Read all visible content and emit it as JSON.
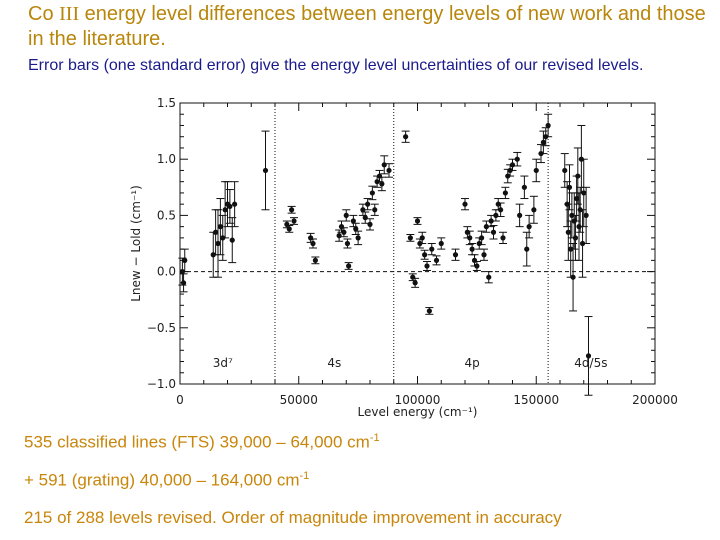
{
  "header": {
    "title_prefix": "Co ",
    "title_roman": "III",
    "title_rest": " energy level differences between energy levels of new work and those in the literature.",
    "subtitle": "Error bars (one standard error) give the energy level uncertainties of our revised levels."
  },
  "notes": {
    "line1_text": "535 classified lines (FTS) 39,000 – 64,000 cm",
    "line1_sup": "-1",
    "line2_text": "+ 591 (grating) 40,000 – 164,000 cm",
    "line2_sup": "-1",
    "line3": "215 of 288 levels revised. Order of magnitude improvement in accuracy"
  },
  "colors": {
    "title": "#b8860b",
    "subtitle": "#1a1a8c",
    "notes": "#c8860b",
    "ink": "#111111"
  },
  "chart_data": {
    "type": "scatter",
    "xlabel": "Level energy (cm⁻¹)",
    "ylabel": "Lnew − Lold (cm⁻¹)",
    "xlim": [
      0,
      200000
    ],
    "ylim": [
      -1.0,
      1.5
    ],
    "xticks": [
      0,
      50000,
      100000,
      150000,
      200000
    ],
    "xtick_labels": [
      "0",
      "50000",
      "100000",
      "150000",
      "200000"
    ],
    "yticks": [
      -1.0,
      -0.5,
      0.0,
      0.5,
      1.0,
      1.5
    ],
    "ytick_labels": [
      "−1.0",
      "−0.5",
      "0.0",
      "0.5",
      "1.0",
      "1.5"
    ],
    "zero_line": 0.0,
    "config_boundaries": [
      40000,
      90000,
      155000
    ],
    "config_labels": [
      {
        "label": "3d⁷",
        "x": 18000
      },
      {
        "label": "4s",
        "x": 65000
      },
      {
        "label": "4p",
        "x": 123000
      },
      {
        "label": "4d/5s",
        "x": 173000
      }
    ],
    "series": [
      {
        "name": "3d7",
        "points": [
          [
            1000,
            0.0,
            0.12
          ],
          [
            1500,
            -0.1,
            0.08
          ],
          [
            2000,
            0.1,
            0.1
          ],
          [
            14000,
            0.15,
            0.2
          ],
          [
            15000,
            0.35,
            0.2
          ],
          [
            16000,
            0.25,
            0.3
          ],
          [
            17000,
            0.4,
            0.25
          ],
          [
            18000,
            0.3,
            0.2
          ],
          [
            19000,
            0.55,
            0.25
          ],
          [
            20000,
            0.6,
            0.2
          ],
          [
            21000,
            0.58,
            0.15
          ],
          [
            22000,
            0.28,
            0.2
          ],
          [
            23000,
            0.6,
            0.2
          ],
          [
            36000,
            0.9,
            0.35
          ]
        ]
      },
      {
        "name": "4s",
        "points": [
          [
            45000,
            0.42,
            0.03
          ],
          [
            46000,
            0.38,
            0.03
          ],
          [
            47000,
            0.55,
            0.03
          ],
          [
            48000,
            0.45,
            0.03
          ],
          [
            55000,
            0.3,
            0.04
          ],
          [
            56000,
            0.25,
            0.04
          ],
          [
            57000,
            0.1,
            0.03
          ],
          [
            67000,
            0.32,
            0.05
          ],
          [
            68000,
            0.4,
            0.05
          ],
          [
            69000,
            0.35,
            0.04
          ],
          [
            70000,
            0.5,
            0.05
          ],
          [
            70500,
            0.25,
            0.04
          ],
          [
            71000,
            0.05,
            0.03
          ],
          [
            73000,
            0.45,
            0.05
          ],
          [
            74000,
            0.38,
            0.05
          ],
          [
            75000,
            0.3,
            0.06
          ],
          [
            77000,
            0.55,
            0.05
          ],
          [
            78000,
            0.48,
            0.05
          ],
          [
            79000,
            0.6,
            0.05
          ],
          [
            80000,
            0.42,
            0.05
          ],
          [
            81000,
            0.7,
            0.06
          ],
          [
            82000,
            0.55,
            0.05
          ],
          [
            83000,
            0.8,
            0.05
          ],
          [
            84000,
            0.85,
            0.05
          ],
          [
            85000,
            0.78,
            0.06
          ],
          [
            86000,
            0.95,
            0.08
          ],
          [
            88000,
            0.9,
            0.06
          ]
        ]
      },
      {
        "name": "4p",
        "points": [
          [
            95000,
            1.2,
            0.05
          ],
          [
            97000,
            0.3,
            0.03
          ],
          [
            98000,
            -0.05,
            0.03
          ],
          [
            99000,
            -0.1,
            0.04
          ],
          [
            100000,
            0.45,
            0.03
          ],
          [
            101000,
            0.25,
            0.04
          ],
          [
            102000,
            0.3,
            0.05
          ],
          [
            103000,
            0.15,
            0.04
          ],
          [
            104000,
            0.05,
            0.04
          ],
          [
            105000,
            -0.35,
            0.03
          ],
          [
            106000,
            0.2,
            0.05
          ],
          [
            108000,
            0.1,
            0.04
          ],
          [
            110000,
            0.25,
            0.05
          ],
          [
            116000,
            0.15,
            0.05
          ],
          [
            120000,
            0.6,
            0.05
          ],
          [
            121000,
            0.35,
            0.05
          ],
          [
            122000,
            0.3,
            0.06
          ],
          [
            123000,
            0.2,
            0.05
          ],
          [
            124000,
            0.1,
            0.05
          ],
          [
            125000,
            0.05,
            0.04
          ],
          [
            126000,
            0.25,
            0.05
          ],
          [
            127000,
            0.3,
            0.06
          ],
          [
            128000,
            0.15,
            0.05
          ],
          [
            129000,
            0.4,
            0.05
          ],
          [
            130000,
            -0.05,
            0.05
          ],
          [
            131000,
            0.45,
            0.05
          ],
          [
            132000,
            0.35,
            0.06
          ],
          [
            133000,
            0.5,
            0.05
          ],
          [
            134000,
            0.6,
            0.05
          ],
          [
            135000,
            0.55,
            0.06
          ],
          [
            136000,
            0.3,
            0.05
          ],
          [
            137000,
            0.7,
            0.05
          ],
          [
            138000,
            0.85,
            0.06
          ],
          [
            139000,
            0.9,
            0.05
          ],
          [
            140000,
            0.95,
            0.05
          ],
          [
            142000,
            1.0,
            0.06
          ],
          [
            143000,
            0.5,
            0.1
          ],
          [
            145000,
            0.75,
            0.1
          ],
          [
            146000,
            0.2,
            0.15
          ],
          [
            147000,
            0.4,
            0.1
          ],
          [
            149000,
            0.55,
            0.12
          ],
          [
            150000,
            0.9,
            0.1
          ],
          [
            152000,
            1.05,
            0.08
          ],
          [
            153000,
            1.15,
            0.1
          ],
          [
            154000,
            1.2,
            0.08
          ],
          [
            155000,
            1.3,
            0.1
          ]
        ]
      },
      {
        "name": "4d/5s",
        "points": [
          [
            162000,
            0.9,
            0.15
          ],
          [
            163000,
            0.6,
            0.2
          ],
          [
            163500,
            0.35,
            0.25
          ],
          [
            164000,
            0.75,
            0.2
          ],
          [
            164500,
            0.2,
            0.25
          ],
          [
            165000,
            0.5,
            0.2
          ],
          [
            165500,
            -0.05,
            0.3
          ],
          [
            166000,
            0.45,
            0.25
          ],
          [
            166500,
            0.3,
            0.2
          ],
          [
            167000,
            0.65,
            0.2
          ],
          [
            167500,
            0.85,
            0.25
          ],
          [
            168000,
            0.4,
            0.3
          ],
          [
            168500,
            0.55,
            0.2
          ],
          [
            169000,
            1.0,
            0.3
          ],
          [
            169500,
            0.25,
            0.3
          ],
          [
            170000,
            0.7,
            0.3
          ],
          [
            171000,
            0.5,
            0.25
          ],
          [
            172000,
            -0.75,
            0.35
          ]
        ]
      }
    ]
  }
}
